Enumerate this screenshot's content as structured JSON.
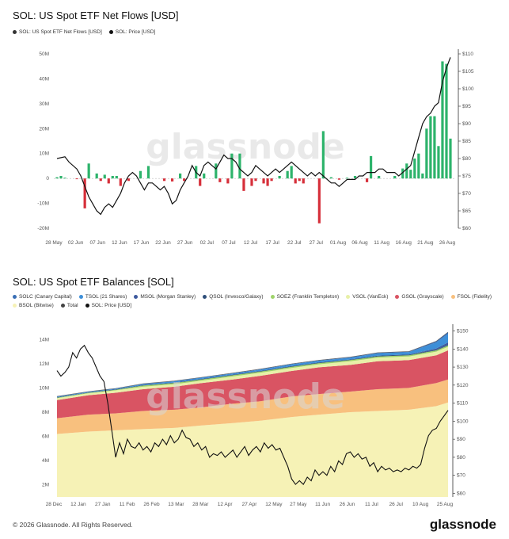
{
  "footer": "© 2026 Glassnode. All Rights Reserved.",
  "brand": "glassnode",
  "watermark": "glassnode",
  "colors": {
    "positive": "#2db36b",
    "negative": "#d62f3a",
    "price": "#111111"
  },
  "chart_data": [
    {
      "type": "bar",
      "title": "SOL: US Spot ETF Net Flows [USD]",
      "legend": [
        {
          "label": "SOL: US Spot ETF Net Flows [USD]",
          "color": "#333333"
        },
        {
          "label": "SOL: Price [USD]",
          "color": "#111111"
        }
      ],
      "x_ticks": [
        "28 May",
        "02 Jun",
        "07 Jun",
        "12 Jun",
        "17 Jun",
        "22 Jun",
        "27 Jun",
        "02 Jul",
        "07 Jul",
        "12 Jul",
        "17 Jul",
        "22 Jul",
        "27 Jul",
        "01 Aug",
        "06 Aug",
        "11 Aug",
        "16 Aug",
        "21 Aug",
        "26 Aug"
      ],
      "y_left_ticks": [
        "-20M",
        "-10M",
        "0",
        "10M",
        "20M",
        "30M",
        "40M",
        "50M"
      ],
      "y_left_range": [
        -20,
        50
      ],
      "y_right_ticks": [
        "$60",
        "$65",
        "$70",
        "$75",
        "$80",
        "$85",
        "$90",
        "$95",
        "$100",
        "$105",
        "$110"
      ],
      "y_right_range": [
        60,
        110
      ],
      "flows_musd": [
        [
          0,
          0.5
        ],
        [
          1,
          1
        ],
        [
          2,
          0.3
        ],
        [
          5,
          -0.3
        ],
        [
          7,
          -12
        ],
        [
          8,
          6
        ],
        [
          10,
          2
        ],
        [
          11,
          -1
        ],
        [
          12,
          1.5
        ],
        [
          13,
          -2
        ],
        [
          14,
          1
        ],
        [
          15,
          1
        ],
        [
          16,
          -3
        ],
        [
          18,
          -1
        ],
        [
          21,
          3
        ],
        [
          23,
          5
        ],
        [
          27,
          -1
        ],
        [
          29,
          -1.2
        ],
        [
          31,
          2
        ],
        [
          32,
          -1
        ],
        [
          35,
          5
        ],
        [
          36,
          -3
        ],
        [
          37,
          2
        ],
        [
          40,
          6
        ],
        [
          41,
          -1.5
        ],
        [
          43,
          -2
        ],
        [
          44,
          10
        ],
        [
          46,
          10
        ],
        [
          47,
          -5
        ],
        [
          49,
          -3
        ],
        [
          50,
          -1
        ],
        [
          52,
          -2
        ],
        [
          53,
          -3
        ],
        [
          54,
          -1
        ],
        [
          56,
          1
        ],
        [
          58,
          3
        ],
        [
          59,
          5
        ],
        [
          60,
          -2
        ],
        [
          61,
          -1
        ],
        [
          62,
          -2
        ],
        [
          66,
          -18
        ],
        [
          67,
          19
        ],
        [
          69,
          0.5
        ],
        [
          71,
          -0.5
        ],
        [
          73,
          0.3
        ],
        [
          75,
          1
        ],
        [
          78,
          -1.5
        ],
        [
          79,
          9
        ],
        [
          81,
          1
        ],
        [
          85,
          1
        ],
        [
          87,
          4
        ],
        [
          88,
          6
        ],
        [
          89,
          3.5
        ],
        [
          90,
          8
        ],
        [
          91,
          10
        ],
        [
          92,
          2
        ],
        [
          93,
          20
        ],
        [
          94,
          25
        ],
        [
          95,
          25
        ],
        [
          96,
          13
        ],
        [
          97,
          47
        ],
        [
          98,
          46
        ],
        [
          99,
          16
        ]
      ],
      "price_usd": [
        [
          0,
          80
        ],
        [
          2,
          80.5
        ],
        [
          3,
          79
        ],
        [
          5,
          77
        ],
        [
          6,
          75
        ],
        [
          7,
          72
        ],
        [
          8,
          69
        ],
        [
          9,
          67
        ],
        [
          10,
          65
        ],
        [
          11,
          64
        ],
        [
          12,
          66
        ],
        [
          13,
          67
        ],
        [
          14,
          66
        ],
        [
          15,
          68
        ],
        [
          16,
          70
        ],
        [
          17,
          73
        ],
        [
          18,
          75
        ],
        [
          19,
          76
        ],
        [
          20,
          75
        ],
        [
          21,
          73
        ],
        [
          22,
          71
        ],
        [
          23,
          73
        ],
        [
          24,
          73
        ],
        [
          25,
          72
        ],
        [
          26,
          71
        ],
        [
          27,
          72
        ],
        [
          28,
          70
        ],
        [
          29,
          67
        ],
        [
          30,
          68
        ],
        [
          31,
          71
        ],
        [
          32,
          73
        ],
        [
          33,
          75
        ],
        [
          34,
          78
        ],
        [
          35,
          76
        ],
        [
          36,
          75
        ],
        [
          37,
          78
        ],
        [
          38,
          79
        ],
        [
          39,
          78
        ],
        [
          40,
          77
        ],
        [
          41,
          79
        ],
        [
          42,
          81
        ],
        [
          43,
          80
        ],
        [
          44,
          80
        ],
        [
          45,
          79
        ],
        [
          46,
          77
        ],
        [
          47,
          76
        ],
        [
          48,
          75
        ],
        [
          49,
          76
        ],
        [
          50,
          78
        ],
        [
          51,
          77
        ],
        [
          52,
          76
        ],
        [
          53,
          75
        ],
        [
          54,
          76
        ],
        [
          55,
          77
        ],
        [
          56,
          76
        ],
        [
          57,
          77
        ],
        [
          58,
          78
        ],
        [
          59,
          79
        ],
        [
          60,
          78
        ],
        [
          61,
          77
        ],
        [
          62,
          76
        ],
        [
          63,
          75
        ],
        [
          64,
          76
        ],
        [
          65,
          75
        ],
        [
          66,
          76
        ],
        [
          67,
          75
        ],
        [
          68,
          74
        ],
        [
          69,
          73
        ],
        [
          70,
          73
        ],
        [
          71,
          72
        ],
        [
          72,
          73
        ],
        [
          73,
          74
        ],
        [
          74,
          74
        ],
        [
          75,
          74
        ],
        [
          76,
          75
        ],
        [
          77,
          75
        ],
        [
          78,
          76
        ],
        [
          79,
          76
        ],
        [
          80,
          76
        ],
        [
          81,
          77
        ],
        [
          82,
          77
        ],
        [
          83,
          76
        ],
        [
          84,
          76
        ],
        [
          85,
          76
        ],
        [
          86,
          75
        ],
        [
          87,
          76
        ],
        [
          88,
          77
        ],
        [
          89,
          78
        ],
        [
          90,
          82
        ],
        [
          91,
          86
        ],
        [
          92,
          90
        ],
        [
          93,
          92
        ],
        [
          94,
          93
        ],
        [
          95,
          95
        ],
        [
          96,
          96
        ],
        [
          97,
          102
        ],
        [
          98,
          106
        ],
        [
          99,
          109
        ]
      ]
    },
    {
      "type": "area",
      "title": "SOL: US Spot ETF Balances [SOL]",
      "legend": [
        {
          "label": "SOLC (Canary Capital)",
          "color": "#3a6fb5"
        },
        {
          "label": "TSOL (21 Shares)",
          "color": "#3d8fd8"
        },
        {
          "label": "MSOL (Morgan Stanley)",
          "color": "#3d5a9e"
        },
        {
          "label": "QSOL (Invesco/Galaxy)",
          "color": "#2f4f7a"
        },
        {
          "label": "SOEZ (Franklin Templeton)",
          "color": "#9ed36a"
        },
        {
          "label": "VSOL (VanEck)",
          "color": "#e8f0a8"
        },
        {
          "label": "GSOL (Grayscale)",
          "color": "#d95463"
        },
        {
          "label": "FSOL (Fidelity)",
          "color": "#f8c07e"
        },
        {
          "label": "BSOL (Bitwise)",
          "color": "#f6f2b6"
        },
        {
          "label": "Total",
          "color": "#444444"
        },
        {
          "label": "SOL: Price [USD]",
          "color": "#111111"
        }
      ],
      "x_ticks": [
        "28 Dec",
        "12 Jan",
        "27 Jan",
        "11 Feb",
        "26 Feb",
        "13 Mar",
        "28 Mar",
        "12 Apr",
        "27 Apr",
        "12 May",
        "27 May",
        "11 Jun",
        "26 Jun",
        "11 Jul",
        "26 Jul",
        "10 Aug",
        "25 Aug"
      ],
      "y_left_ticks": [
        "2M",
        "4M",
        "6M",
        "8M",
        "10M",
        "12M",
        "14M"
      ],
      "y_left_range": [
        1,
        15
      ],
      "y_right_ticks": [
        "$60",
        "$70",
        "$80",
        "$90",
        "$100",
        "$110",
        "$120",
        "$130",
        "$140",
        "$150"
      ],
      "y_right_range": [
        58,
        152
      ],
      "x_index": [
        0,
        8,
        15,
        22,
        30,
        37,
        45,
        52,
        60,
        67,
        75,
        82,
        90,
        97,
        100
      ],
      "series_msol": [
        {
          "name": "BSOL",
          "values": [
            6.2,
            6.4,
            6.5,
            6.6,
            6.7,
            6.9,
            7.1,
            7.3,
            7.6,
            7.8,
            8.0,
            8.1,
            8.2,
            8.5,
            8.8
          ]
        },
        {
          "name": "FSOL",
          "values": [
            1.3,
            1.4,
            1.4,
            1.5,
            1.5,
            1.5,
            1.6,
            1.6,
            1.7,
            1.7,
            1.7,
            1.8,
            1.8,
            1.9,
            1.9
          ]
        },
        {
          "name": "GSOL",
          "values": [
            1.5,
            1.6,
            1.7,
            1.8,
            1.9,
            2.0,
            2.0,
            2.1,
            2.1,
            2.2,
            2.2,
            2.3,
            2.3,
            2.3,
            2.4
          ]
        },
        {
          "name": "VSOL",
          "values": [
            0.15,
            0.15,
            0.2,
            0.2,
            0.2,
            0.2,
            0.25,
            0.25,
            0.25,
            0.25,
            0.3,
            0.3,
            0.3,
            0.3,
            0.3
          ]
        },
        {
          "name": "SOEZ",
          "values": [
            0.05,
            0.05,
            0.05,
            0.1,
            0.1,
            0.1,
            0.1,
            0.1,
            0.1,
            0.1,
            0.1,
            0.1,
            0.1,
            0.1,
            0.1
          ]
        },
        {
          "name": "QSOL",
          "values": [
            0.03,
            0.03,
            0.04,
            0.04,
            0.05,
            0.05,
            0.05,
            0.05,
            0.05,
            0.05,
            0.05,
            0.06,
            0.06,
            0.06,
            0.06
          ]
        },
        {
          "name": "MSOL",
          "values": [
            0,
            0,
            0,
            0,
            0,
            0,
            0,
            0,
            0,
            0,
            0,
            0,
            0,
            0.1,
            0.2
          ]
        },
        {
          "name": "TSOL",
          "values": [
            0.05,
            0.05,
            0.05,
            0.08,
            0.1,
            0.1,
            0.1,
            0.12,
            0.15,
            0.15,
            0.15,
            0.2,
            0.2,
            0.5,
            0.7
          ]
        },
        {
          "name": "SOLC",
          "values": [
            0.02,
            0.02,
            0.02,
            0.03,
            0.03,
            0.03,
            0.03,
            0.04,
            0.04,
            0.04,
            0.05,
            0.05,
            0.05,
            0.1,
            0.15
          ]
        }
      ],
      "price_usd": [
        [
          0,
          128
        ],
        [
          1,
          125
        ],
        [
          2,
          127
        ],
        [
          3,
          130
        ],
        [
          4,
          138
        ],
        [
          5,
          135
        ],
        [
          6,
          140
        ],
        [
          7,
          142
        ],
        [
          8,
          138
        ],
        [
          9,
          135
        ],
        [
          10,
          130
        ],
        [
          11,
          125
        ],
        [
          12,
          122
        ],
        [
          13,
          110
        ],
        [
          14,
          95
        ],
        [
          15,
          80
        ],
        [
          16,
          88
        ],
        [
          17,
          82
        ],
        [
          18,
          90
        ],
        [
          19,
          86
        ],
        [
          20,
          85
        ],
        [
          21,
          88
        ],
        [
          22,
          84
        ],
        [
          23,
          86
        ],
        [
          24,
          83
        ],
        [
          25,
          88
        ],
        [
          26,
          86
        ],
        [
          27,
          90
        ],
        [
          28,
          87
        ],
        [
          29,
          92
        ],
        [
          30,
          88
        ],
        [
          31,
          90
        ],
        [
          32,
          95
        ],
        [
          33,
          91
        ],
        [
          34,
          90
        ],
        [
          35,
          86
        ],
        [
          36,
          88
        ],
        [
          37,
          84
        ],
        [
          38,
          86
        ],
        [
          39,
          80
        ],
        [
          40,
          82
        ],
        [
          41,
          81
        ],
        [
          42,
          83
        ],
        [
          43,
          80
        ],
        [
          44,
          82
        ],
        [
          45,
          84
        ],
        [
          46,
          80
        ],
        [
          47,
          83
        ],
        [
          48,
          86
        ],
        [
          49,
          81
        ],
        [
          50,
          84
        ],
        [
          51,
          86
        ],
        [
          52,
          83
        ],
        [
          53,
          88
        ],
        [
          54,
          85
        ],
        [
          55,
          87
        ],
        [
          56,
          84
        ],
        [
          57,
          85
        ],
        [
          58,
          80
        ],
        [
          59,
          75
        ],
        [
          60,
          68
        ],
        [
          61,
          65
        ],
        [
          62,
          67
        ],
        [
          63,
          65
        ],
        [
          64,
          69
        ],
        [
          65,
          67
        ],
        [
          66,
          73
        ],
        [
          67,
          70
        ],
        [
          68,
          72
        ],
        [
          69,
          70
        ],
        [
          70,
          75
        ],
        [
          71,
          72
        ],
        [
          72,
          78
        ],
        [
          73,
          76
        ],
        [
          74,
          82
        ],
        [
          75,
          83
        ],
        [
          76,
          80
        ],
        [
          77,
          82
        ],
        [
          78,
          79
        ],
        [
          79,
          80
        ],
        [
          80,
          75
        ],
        [
          81,
          77
        ],
        [
          82,
          72
        ],
        [
          83,
          75
        ],
        [
          84,
          73
        ],
        [
          85,
          74
        ],
        [
          86,
          72
        ],
        [
          87,
          73
        ],
        [
          88,
          72
        ],
        [
          89,
          74
        ],
        [
          90,
          73
        ],
        [
          91,
          75
        ],
        [
          92,
          74
        ],
        [
          93,
          76
        ],
        [
          94,
          85
        ],
        [
          95,
          92
        ],
        [
          96,
          95
        ],
        [
          97,
          96
        ],
        [
          98,
          100
        ],
        [
          99,
          103
        ],
        [
          100,
          106
        ]
      ]
    }
  ]
}
